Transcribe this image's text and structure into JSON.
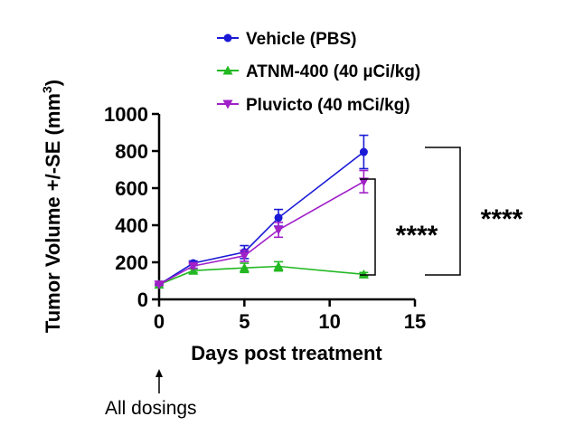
{
  "chart_data": {
    "type": "line",
    "title": "",
    "xlabel": "Days post treatment",
    "ylabel_main": "Tumor Volume +/-SE (mm",
    "ylabel_sup": "3",
    "ylabel_close": ")",
    "xlim": [
      0,
      15
    ],
    "ylim": [
      0,
      1000
    ],
    "xticks": [
      0,
      5,
      10,
      15
    ],
    "yticks": [
      0,
      200,
      400,
      600,
      800,
      1000
    ],
    "grid": false,
    "legend_position": "top",
    "annotation": "All dosings",
    "annotation_x": 0,
    "significance": [
      {
        "label": "****",
        "between": [
          "ATNM-400 (40 µCi/kg)",
          "Pluvicto (40 mCi/kg)"
        ]
      },
      {
        "label": "****",
        "between": [
          "ATNM-400 (40 µCi/kg)",
          "Vehicle (PBS)"
        ]
      }
    ],
    "series": [
      {
        "name": "Vehicle (PBS)",
        "color": "#1a1ad6",
        "marker": "circle",
        "x": [
          0,
          2,
          5,
          7,
          12
        ],
        "y": [
          80,
          195,
          255,
          440,
          795
        ],
        "err": [
          5,
          12,
          35,
          45,
          90
        ]
      },
      {
        "name": "ATNM-400 (40 µCi/kg)",
        "color": "#22b822",
        "marker": "triangle-up",
        "x": [
          0,
          2,
          5,
          7,
          12
        ],
        "y": [
          80,
          155,
          170,
          178,
          135
        ],
        "err": [
          5,
          10,
          25,
          25,
          10
        ]
      },
      {
        "name": "Pluvicto (40 mCi/kg)",
        "color": "#a020c8",
        "marker": "triangle-down",
        "x": [
          0,
          2,
          5,
          7,
          12
        ],
        "y": [
          80,
          180,
          235,
          375,
          635
        ],
        "err": [
          5,
          12,
          30,
          40,
          60
        ]
      }
    ]
  }
}
